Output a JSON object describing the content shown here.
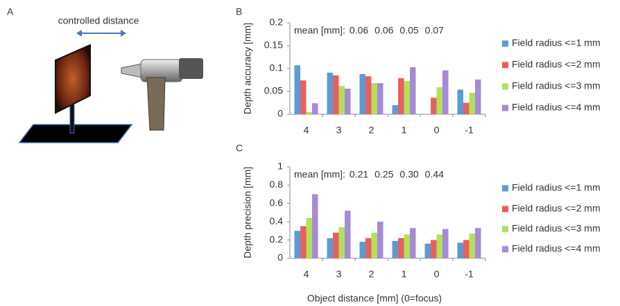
{
  "figure": {
    "panel_label": "A",
    "annotation": "controlled distance"
  },
  "chart_data": [
    {
      "type": "bar",
      "panel_label": "B",
      "y_label": "Depth accuracy [mm]",
      "categories": [
        "4",
        "3",
        "2",
        "1",
        "0",
        "-1"
      ],
      "series": [
        {
          "name": "Field radius <=1 mm",
          "color": "#5b9bd5",
          "values": [
            0.107,
            0.091,
            0.088,
            0.02,
            null,
            0.054
          ]
        },
        {
          "name": "Field radius <=2 mm",
          "color": "#e8605c",
          "values": [
            0.074,
            0.085,
            0.083,
            0.079,
            0.036,
            0.025
          ]
        },
        {
          "name": "Field radius <=3 mm",
          "color": "#b3e05a",
          "values": [
            0.005,
            0.062,
            0.068,
            0.073,
            0.059,
            0.047
          ]
        },
        {
          "name": "Field radius <=4 mm",
          "color": "#a68ad8",
          "values": [
            0.024,
            0.056,
            0.068,
            0.103,
            0.096,
            0.076
          ]
        }
      ],
      "mean_label": "mean [mm]:",
      "mean_values": [
        "0.06",
        "0.06",
        "0.05",
        "0.07"
      ],
      "ylim": [
        0,
        0.2
      ],
      "yticks": [
        0,
        0.05,
        0.1,
        0.15,
        0.2
      ],
      "grid": false
    },
    {
      "type": "bar",
      "panel_label": "C",
      "y_label": "Depth precision [mm]",
      "x_label": "Object distance [mm] (0=focus)",
      "categories": [
        "4",
        "3",
        "2",
        "1",
        "0",
        "-1"
      ],
      "series": [
        {
          "name": "Field radius <=1 mm",
          "color": "#5b9bd5",
          "values": [
            0.3,
            0.22,
            0.18,
            0.19,
            0.16,
            0.17
          ]
        },
        {
          "name": "Field radius <=2 mm",
          "color": "#e8605c",
          "values": [
            0.35,
            0.28,
            0.22,
            0.22,
            0.2,
            0.2
          ]
        },
        {
          "name": "Field radius <=3 mm",
          "color": "#b3e05a",
          "values": [
            0.44,
            0.34,
            0.28,
            0.26,
            0.26,
            0.27
          ]
        },
        {
          "name": "Field radius <=4 mm",
          "color": "#a68ad8",
          "values": [
            0.7,
            0.52,
            0.4,
            0.33,
            0.32,
            0.33
          ]
        }
      ],
      "mean_label": "mean [mm]:",
      "mean_values": [
        "0.21",
        "0.25",
        "0.30",
        "0.44"
      ],
      "ylim": [
        0,
        1
      ],
      "yticks": [
        0,
        0.2,
        0.4,
        0.6,
        0.8,
        1
      ],
      "grid": false
    }
  ]
}
